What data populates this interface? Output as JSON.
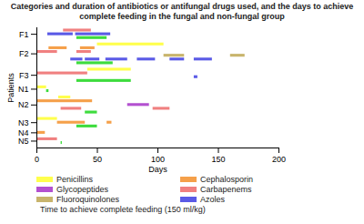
{
  "chart_data": {
    "type": "gantt",
    "title": "Categories and duration of antibiotics or antifungal drugs used, and the days to achieve complete feeding in the fungal and non-fungal group",
    "x_label": "Days",
    "y_label": "Patients",
    "categories": [
      "F1",
      "F2",
      "F3",
      "N1",
      "N2",
      "N3",
      "N4",
      "N5"
    ],
    "xlim": [
      0,
      200
    ],
    "xticks": [
      0,
      50,
      100,
      150,
      200
    ],
    "orientation": "horizontal",
    "legend": "bottom",
    "grid": false,
    "series": [
      {
        "name": "Penicillins",
        "color": "#ffff4d",
        "values": [
          [],
          [
            [
              50,
              105
            ]
          ],
          [
            [
              42,
              78
            ]
          ],
          [
            [
              0,
              8
            ]
          ],
          [
            [
              18,
              28
            ]
          ],
          [
            [
              0,
              17
            ]
          ],
          [],
          []
        ]
      },
      {
        "name": "Cephalosporin",
        "color": "#f5a04a",
        "values": [
          [],
          [
            [
              10,
              25
            ],
            [
              36,
              48
            ]
          ],
          [],
          [],
          [
            [
              0,
              46
            ]
          ],
          [
            [
              17,
              40
            ],
            [
              58,
              62
            ]
          ],
          [
            [
              0,
              7
            ]
          ],
          []
        ]
      },
      {
        "name": "Glycopeptides",
        "color": "#b350d0",
        "values": [
          [],
          [],
          [],
          [],
          [
            [
              75,
              93
            ]
          ],
          [],
          [],
          []
        ]
      },
      {
        "name": "Carbapenems",
        "color": "#f08080",
        "values": [
          [
            [
              22,
              45
            ]
          ],
          [
            [
              0,
              17
            ],
            [
              33,
              45
            ]
          ],
          [
            [
              0,
              42
            ]
          ],
          [],
          [
            [
              20,
              37
            ],
            [
              96,
              110
            ]
          ],
          [],
          [],
          [
            [
              0,
              17
            ]
          ]
        ]
      },
      {
        "name": "Fluoroquinolones",
        "color": "#c8b46c",
        "values": [
          [],
          [
            [
              105,
              122
            ],
            [
              160,
              172
            ]
          ],
          [],
          [],
          [],
          [],
          [],
          []
        ]
      },
      {
        "name": "Azoles",
        "color": "#5a5ae6",
        "values": [
          [
            [
              9,
              30
            ],
            [
              32,
              61
            ]
          ],
          [
            [
              28,
              38
            ],
            [
              40,
              52
            ],
            [
              57,
              75
            ],
            [
              83,
              98
            ],
            [
              110,
              122
            ],
            [
              130,
              145
            ]
          ],
          [
            [
              130,
              133
            ]
          ],
          [],
          [],
          [],
          [],
          []
        ]
      },
      {
        "name": "Time to achieve complete feeding (150 ml/kg)",
        "color": "#3ddc3d",
        "values": [
          [
            [
              33,
              58
            ]
          ],
          [
            [
              33,
              63
            ]
          ],
          [
            [
              33,
              78
            ]
          ],
          [
            [
              8,
              10
            ]
          ],
          [
            [
              40,
              50
            ]
          ],
          [
            [
              33,
              50
            ]
          ],
          [],
          [
            [
              20,
              21
            ]
          ]
        ]
      }
    ]
  }
}
